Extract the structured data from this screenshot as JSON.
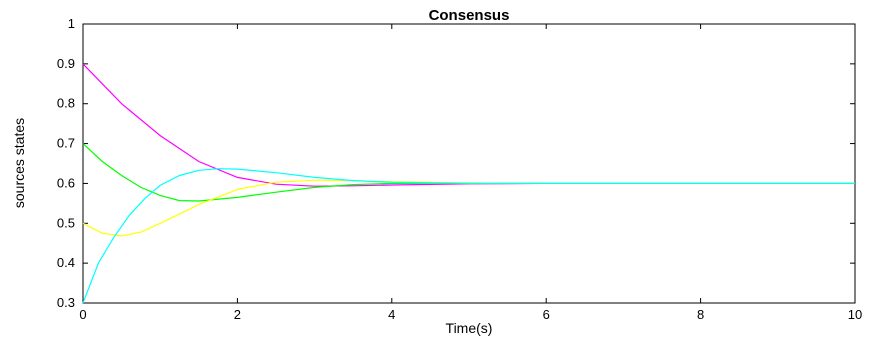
{
  "chart_data": {
    "type": "line",
    "title": "Consensus",
    "xlabel": "Time(s)",
    "ylabel": "sources states",
    "xlim": [
      0,
      10
    ],
    "ylim": [
      0.3,
      1
    ],
    "xticks": [
      0,
      2,
      4,
      6,
      8,
      10
    ],
    "yticks": [
      0.3,
      0.4,
      0.5,
      0.6,
      0.7,
      0.8,
      0.9,
      1
    ],
    "xtick_labels": [
      "0",
      "2",
      "4",
      "6",
      "8",
      "10"
    ],
    "ytick_labels": [
      "0.3",
      "0.4",
      "0.5",
      "0.6",
      "0.7",
      "0.8",
      "0.9",
      "1"
    ],
    "grid": false,
    "series": [
      {
        "color": "#ff00ff",
        "x": [
          0,
          0.5,
          1,
          1.5,
          2,
          2.5,
          3,
          3.5,
          4,
          5,
          6,
          7,
          8,
          9,
          10
        ],
        "y": [
          0.9,
          0.8,
          0.72,
          0.655,
          0.615,
          0.598,
          0.593,
          0.594,
          0.596,
          0.599,
          0.6,
          0.6,
          0.6,
          0.6,
          0.6
        ]
      },
      {
        "color": "#00ff00",
        "x": [
          0,
          0.25,
          0.5,
          0.75,
          1,
          1.25,
          1.5,
          2,
          2.5,
          3,
          3.5,
          4,
          5,
          6,
          7,
          8,
          9,
          10
        ],
        "y": [
          0.7,
          0.655,
          0.62,
          0.59,
          0.57,
          0.557,
          0.556,
          0.565,
          0.578,
          0.59,
          0.597,
          0.6,
          0.601,
          0.6,
          0.6,
          0.6,
          0.6,
          0.6
        ]
      },
      {
        "color": "#ffff00",
        "x": [
          0,
          0.25,
          0.5,
          0.75,
          1,
          1.5,
          2,
          2.5,
          3,
          3.5,
          4,
          5,
          6,
          7,
          8,
          9,
          10
        ],
        "y": [
          0.5,
          0.475,
          0.468,
          0.478,
          0.5,
          0.547,
          0.585,
          0.603,
          0.608,
          0.607,
          0.604,
          0.601,
          0.6,
          0.6,
          0.6,
          0.6,
          0.6
        ]
      },
      {
        "color": "#00ffff",
        "x": [
          0,
          0.2,
          0.4,
          0.6,
          0.8,
          1,
          1.25,
          1.5,
          1.75,
          2,
          2.5,
          3,
          3.5,
          4,
          5,
          6,
          7,
          8,
          9,
          10
        ],
        "y": [
          0.3,
          0.4,
          0.465,
          0.52,
          0.562,
          0.595,
          0.62,
          0.633,
          0.637,
          0.636,
          0.627,
          0.615,
          0.607,
          0.603,
          0.6,
          0.6,
          0.6,
          0.6,
          0.6,
          0.6
        ]
      }
    ]
  }
}
